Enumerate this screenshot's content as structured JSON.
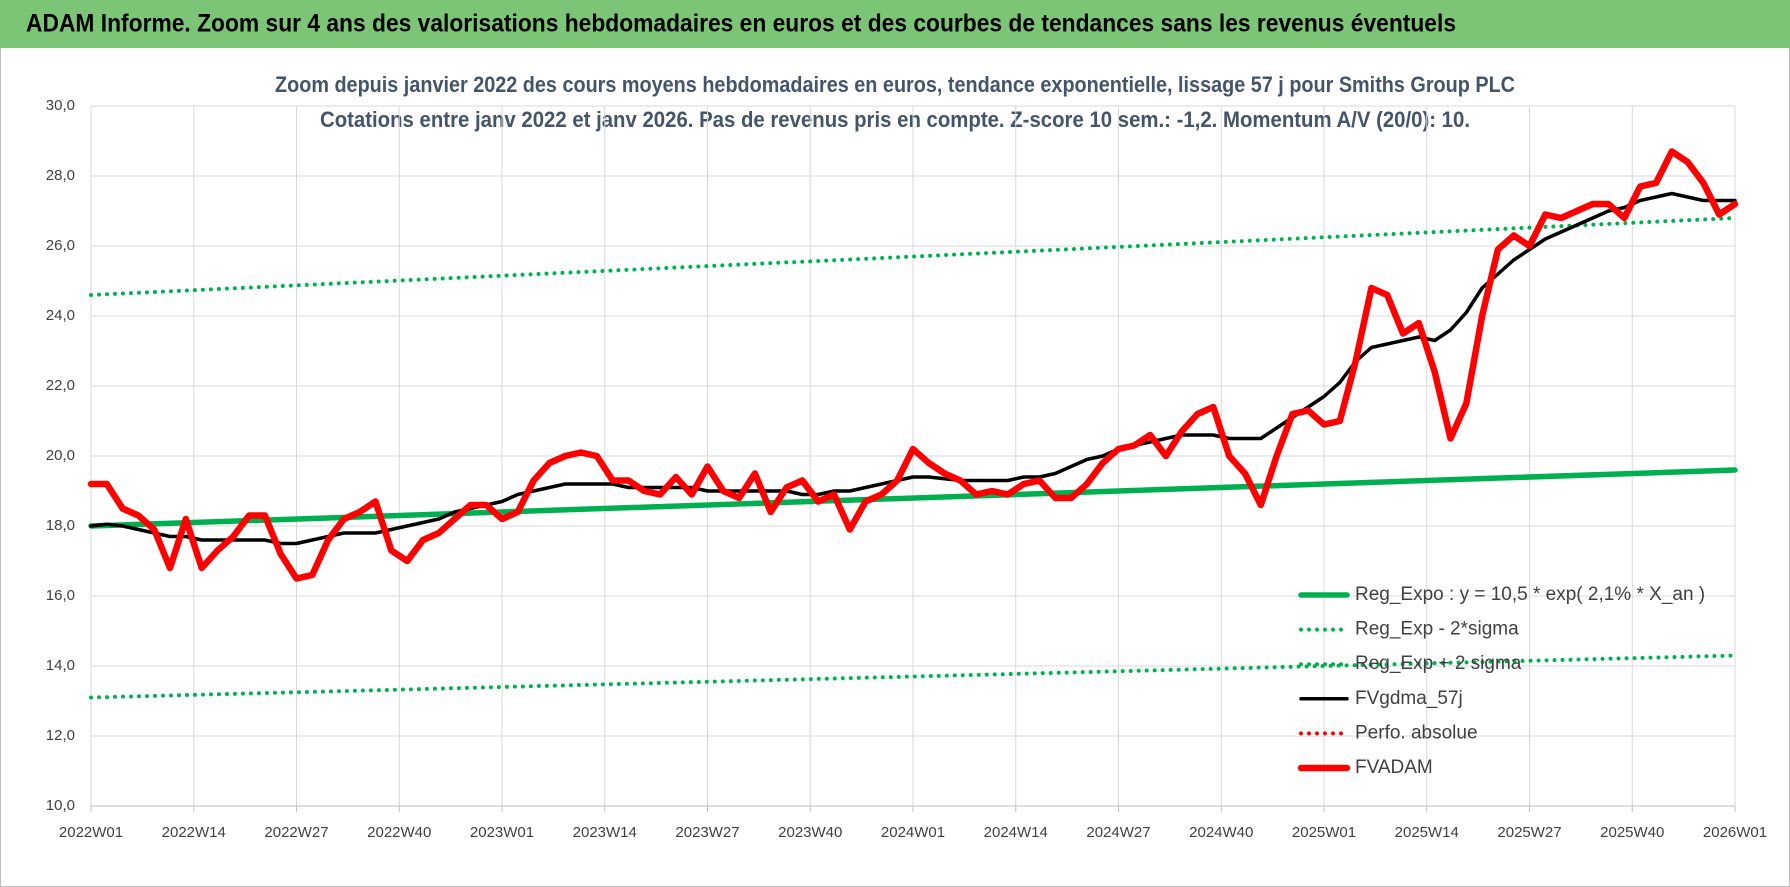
{
  "header": {
    "title": "ADAM Informe. Zoom sur 4 ans des valorisations hebdomadaires en euros et des courbes de tendances sans les revenus éventuels"
  },
  "chart_data": {
    "type": "line",
    "title": "Zoom depuis janvier 2022 des cours moyens hebdomadaires en euros, tendance exponentielle, lissage 57 j pour Smiths Group PLC",
    "subtitle": "Cotations entre janv 2022 et janv 2026. Pas de revenus pris en compte. Z-score 10 sem.: -1,2. Momentum A/V (20/0): 10.",
    "x": [
      "2022W01",
      "2022W03",
      "2022W05",
      "2022W07",
      "2022W09",
      "2022W11",
      "2022W13",
      "2022W15",
      "2022W17",
      "2022W19",
      "2022W21",
      "2022W23",
      "2022W25",
      "2022W27",
      "2022W29",
      "2022W31",
      "2022W33",
      "2022W35",
      "2022W37",
      "2022W39",
      "2022W41",
      "2022W43",
      "2022W45",
      "2022W47",
      "2022W49",
      "2022W51",
      "2023W01",
      "2023W03",
      "2023W05",
      "2023W07",
      "2023W09",
      "2023W11",
      "2023W13",
      "2023W15",
      "2023W17",
      "2023W19",
      "2023W21",
      "2023W23",
      "2023W25",
      "2023W27",
      "2023W29",
      "2023W31",
      "2023W33",
      "2023W35",
      "2023W37",
      "2023W39",
      "2023W41",
      "2023W43",
      "2023W45",
      "2023W47",
      "2023W49",
      "2023W51",
      "2024W01",
      "2024W03",
      "2024W05",
      "2024W07",
      "2024W09",
      "2024W11",
      "2024W13",
      "2024W15",
      "2024W17",
      "2024W19",
      "2024W21",
      "2024W23",
      "2024W25",
      "2024W27",
      "2024W29",
      "2024W31",
      "2024W33",
      "2024W35",
      "2024W37",
      "2024W39",
      "2024W41",
      "2024W43",
      "2024W45",
      "2024W47",
      "2024W49",
      "2024W51",
      "2025W01",
      "2025W03",
      "2025W05",
      "2025W07",
      "2025W09",
      "2025W11",
      "2025W13",
      "2025W15",
      "2025W17",
      "2025W19",
      "2025W21",
      "2025W23",
      "2025W25",
      "2025W27",
      "2025W29",
      "2025W31",
      "2025W33",
      "2025W35",
      "2025W37",
      "2025W39",
      "2025W41",
      "2025W43",
      "2025W45",
      "2025W47",
      "2025W49",
      "2025W51",
      "2026W01"
    ],
    "xlim": [
      "2022W01",
      "2026W01"
    ],
    "xticks": [
      "2022W01",
      "2022W14",
      "2022W27",
      "2022W40",
      "2023W01",
      "2023W14",
      "2023W27",
      "2023W40",
      "2024W01",
      "2024W14",
      "2024W27",
      "2024W40",
      "2025W01",
      "2025W14",
      "2025W27",
      "2025W40",
      "2026W01"
    ],
    "ylim": [
      10,
      30
    ],
    "yticks": [
      {
        "value": 10,
        "label": "10,0"
      },
      {
        "value": 12,
        "label": "12,0"
      },
      {
        "value": 14,
        "label": "14,0"
      },
      {
        "value": 16,
        "label": "16,0"
      },
      {
        "value": 18,
        "label": "18,0"
      },
      {
        "value": 20,
        "label": "20,0"
      },
      {
        "value": 22,
        "label": "22,0"
      },
      {
        "value": 24,
        "label": "24,0"
      },
      {
        "value": 26,
        "label": "26,0"
      },
      {
        "value": 28,
        "label": "28,0"
      },
      {
        "value": 30,
        "label": "30,0"
      }
    ],
    "grid": true,
    "legend": "lower right",
    "series": [
      {
        "name": "Reg_Expo : y = 10,5 * exp( 2,1% *  X_an )",
        "color": "#00b050",
        "style": "solid",
        "x": [
          "2022W01",
          "2026W01"
        ],
        "values": [
          18.0,
          19.6
        ]
      },
      {
        "name": "Reg_Exp - 2*sigma",
        "color": "#00b050",
        "style": "dotted",
        "x": [
          "2022W01",
          "2026W01"
        ],
        "values": [
          13.1,
          14.3
        ]
      },
      {
        "name": "Reg_Exp + 2 sigma",
        "color": "#00b050",
        "style": "dotted",
        "x": [
          "2022W01",
          "2026W01"
        ],
        "values": [
          24.6,
          26.8
        ]
      },
      {
        "name": "FVgdma_57j",
        "color": "#000000",
        "style": "thin",
        "values": [
          18.0,
          18.05,
          18.0,
          17.9,
          17.8,
          17.7,
          17.7,
          17.6,
          17.6,
          17.6,
          17.6,
          17.6,
          17.5,
          17.5,
          17.6,
          17.7,
          17.8,
          17.8,
          17.8,
          17.9,
          18.0,
          18.1,
          18.2,
          18.4,
          18.5,
          18.6,
          18.7,
          18.9,
          19.0,
          19.1,
          19.2,
          19.2,
          19.2,
          19.2,
          19.1,
          19.1,
          19.1,
          19.1,
          19.1,
          19.0,
          19.0,
          19.0,
          19.0,
          19.0,
          19.0,
          18.9,
          18.9,
          19.0,
          19.0,
          19.1,
          19.2,
          19.3,
          19.4,
          19.4,
          19.35,
          19.3,
          19.3,
          19.3,
          19.3,
          19.4,
          19.4,
          19.5,
          19.7,
          19.9,
          20.0,
          20.2,
          20.3,
          20.4,
          20.5,
          20.6,
          20.6,
          20.6,
          20.5,
          20.5,
          20.5,
          20.8,
          21.1,
          21.4,
          21.7,
          22.1,
          22.7,
          23.1,
          23.2,
          23.3,
          23.4,
          23.3,
          23.6,
          24.1,
          24.8,
          25.2,
          25.6,
          25.9,
          26.2,
          26.4,
          26.6,
          26.8,
          27.0,
          27.1,
          27.3,
          27.4,
          27.5,
          27.4,
          27.3,
          27.3,
          27.3
        ]
      },
      {
        "name": "Perfo. absolue",
        "color": "#ff0000",
        "style": "dotted"
      },
      {
        "name": "FVADAM",
        "color": "#ff0000",
        "style": "thick",
        "values": [
          19.2,
          19.2,
          18.5,
          18.3,
          17.9,
          16.8,
          18.2,
          16.8,
          17.3,
          17.7,
          18.3,
          18.3,
          17.2,
          16.5,
          16.6,
          17.6,
          18.2,
          18.4,
          18.7,
          17.3,
          17.0,
          17.6,
          17.8,
          18.2,
          18.6,
          18.6,
          18.2,
          18.4,
          19.3,
          19.8,
          20.0,
          20.1,
          20.0,
          19.3,
          19.3,
          19.0,
          18.9,
          19.4,
          18.9,
          19.7,
          19.0,
          18.8,
          19.5,
          18.4,
          19.1,
          19.3,
          18.7,
          18.9,
          17.9,
          18.7,
          18.9,
          19.3,
          20.2,
          19.8,
          19.5,
          19.3,
          18.9,
          19.0,
          18.9,
          19.2,
          19.3,
          18.8,
          18.8,
          19.2,
          19.8,
          20.2,
          20.3,
          20.6,
          20.0,
          20.7,
          21.2,
          21.4,
          20.0,
          19.5,
          18.6,
          20.0,
          21.2,
          21.3,
          20.9,
          21.0,
          22.7,
          24.8,
          24.6,
          23.5,
          23.8,
          22.4,
          20.5,
          21.5,
          24.0,
          25.9,
          26.3,
          26.0,
          26.9,
          26.8,
          27.0,
          27.2,
          27.2,
          26.8,
          27.7,
          27.8,
          28.7,
          28.4,
          27.8,
          26.9,
          27.2
        ]
      }
    ]
  }
}
